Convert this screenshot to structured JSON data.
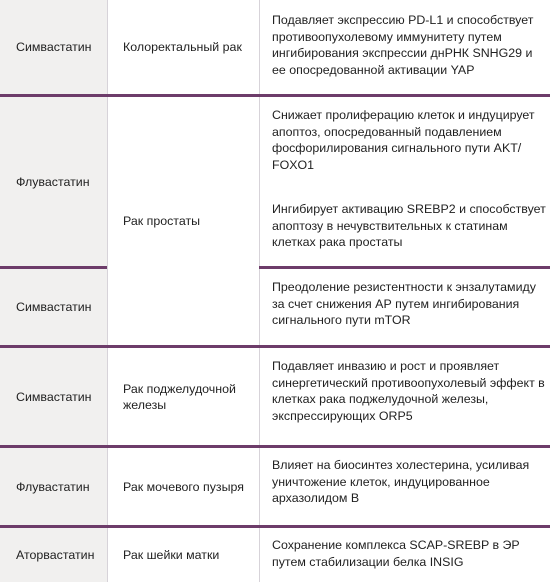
{
  "rows": [
    {
      "statin": "Симвастатин",
      "cancer": "Колоректальный рак",
      "mechanisms": [
        "Подавляет экспрессию PD-L1 и способствует противоопухолевому иммунитету путем ингибирования экспрессии днРНК SNHG29 и ее опосредованной активации YAP"
      ]
    },
    {
      "statin": "Флувастатин",
      "cancer": "Рак простаты",
      "mechanisms": [
        "Снижает пролиферацию клеток и индуцирует апоптоз, опосредованный подавлением фосфорилирования сигнального пути AKT/ FOXO1",
        "Ингибирует активацию SREBP2 и способствует апоптозу в нечувствительных к статинам клетках рака простаты"
      ]
    },
    {
      "statin": "Симвастатин",
      "cancer": "",
      "mechanisms": [
        "Преодоление резистентности к энзалутамиду за счет снижения АР путем ингибирования сигнального пути mTOR"
      ]
    },
    {
      "statin": "Симвастатин",
      "cancer": "Рак поджелудочной железы",
      "mechanisms": [
        "Подавляет инвазию и рост и проявляет синергетический противоопухолевый эффект в клетках рака поджелудочной железы, экспрессирующих ORP5"
      ]
    },
    {
      "statin": "Флувастатин",
      "cancer": "Рак мочевого пузыря",
      "mechanisms": [
        "Влияет на биосинтез холестерина, усиливая уничтожение клеток, индуцированное архазолидом B"
      ]
    },
    {
      "statin": "Аторвастатин",
      "cancer": "Рак шейки матки",
      "mechanisms": [
        "Сохранение комплекса SCAP-SREBP в ЭР путем стабилизации белка INSIG"
      ]
    }
  ],
  "colors": {
    "rule": "#6d3c6a",
    "grid": "#d7d3d9",
    "shade": "#f1f0ef",
    "text": "#1f1f1f"
  }
}
